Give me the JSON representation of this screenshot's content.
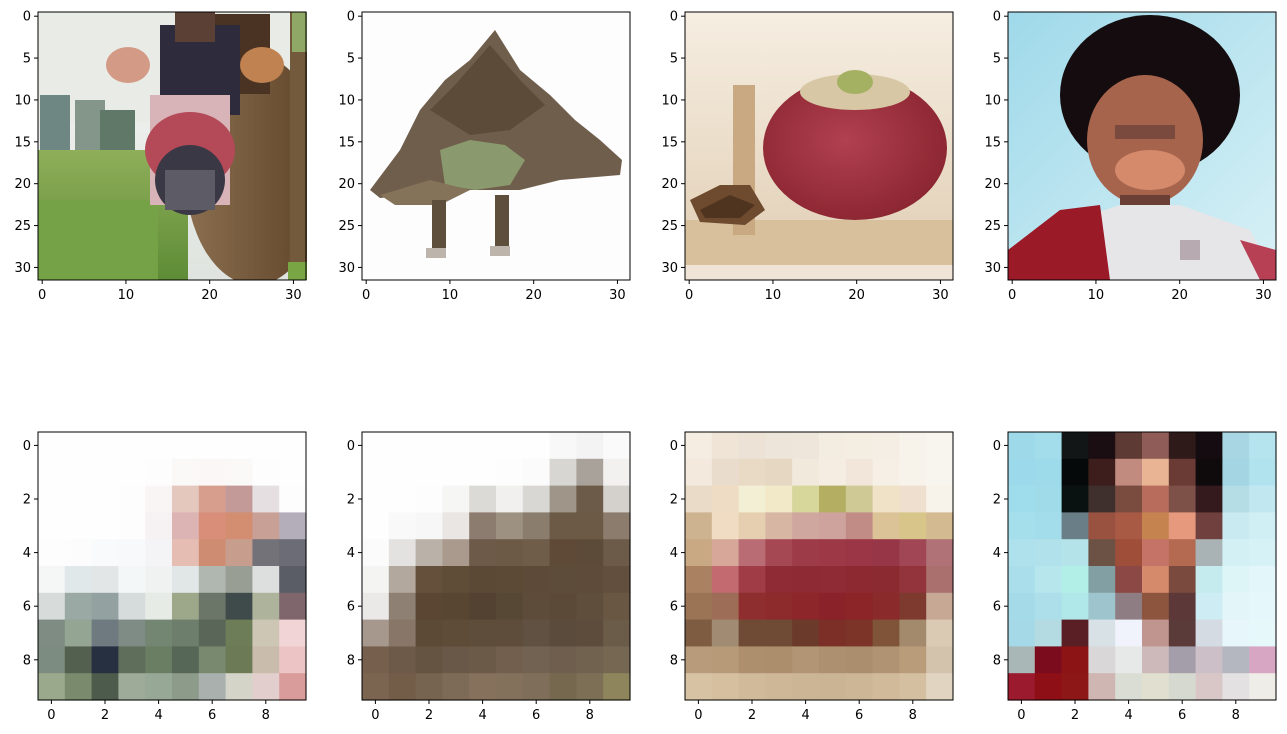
{
  "figure": {
    "top_row": {
      "panels": [
        {
          "name": "cow",
          "ticks_x": [
            "0",
            "10",
            "20",
            "30"
          ],
          "ticks_y": [
            "0",
            "5",
            "10",
            "15",
            "20",
            "25",
            "30"
          ]
        },
        {
          "name": "dinosaur",
          "ticks_x": [
            "0",
            "10",
            "20",
            "30"
          ],
          "ticks_y": [
            "0",
            "5",
            "10",
            "15",
            "20",
            "25",
            "30"
          ]
        },
        {
          "name": "apple",
          "ticks_x": [
            "0",
            "10",
            "20",
            "30"
          ],
          "ticks_y": [
            "0",
            "5",
            "10",
            "15",
            "20",
            "25",
            "30"
          ]
        },
        {
          "name": "person",
          "ticks_x": [
            "0",
            "10",
            "20",
            "30"
          ],
          "ticks_y": [
            "0",
            "5",
            "10",
            "15",
            "20",
            "25",
            "30"
          ]
        }
      ]
    },
    "bottom_row": {
      "ticks_x": [
        "0",
        "2",
        "4",
        "6",
        "8"
      ],
      "ticks_y": [
        "0",
        "2",
        "4",
        "6",
        "8"
      ],
      "grids": [
        [
          [
            "#fefefe",
            "#fefefe",
            "#fefefe",
            "#fefefe",
            "#fefefe",
            "#fefefe",
            "#fefefe",
            "#fefefe",
            "#fefefe",
            "#fefefe"
          ],
          [
            "#fefefe",
            "#fefefe",
            "#fefefe",
            "#fefefe",
            "#fdfdfd",
            "#fbf8f8",
            "#fbf7f7",
            "#fbf8f8",
            "#fdfdfd",
            "#fefefe"
          ],
          [
            "#fefefe",
            "#fefefe",
            "#fefefe",
            "#fdfdfd",
            "#f9f5f5",
            "#e4c7bd",
            "#d79e8e",
            "#c39a98",
            "#e6dfe2",
            "#fdfdfd"
          ],
          [
            "#fefefe",
            "#fefefe",
            "#fefefe",
            "#fdfdfd",
            "#f6f1f2",
            "#dcb4b4",
            "#d98e7a",
            "#d38d70",
            "#c9a096",
            "#b3aeba"
          ],
          [
            "#fdfdfd",
            "#fcfcfd",
            "#f9fafb",
            "#f8f9fa",
            "#f4f4f6",
            "#e6bdb3",
            "#ce8d72",
            "#c79e8e",
            "#747279",
            "#6c6c76"
          ],
          [
            "#f5f6f6",
            "#e1e8e9",
            "#e2e6e6",
            "#f4f7f7",
            "#f0f2f2",
            "#e1e6e6",
            "#b0b6b0",
            "#999e94",
            "#dcdfde",
            "#5a5c66"
          ],
          [
            "#d7dcdb",
            "#9ba9a4",
            "#93a2a0",
            "#d6dcdc",
            "#e7ebe6",
            "#9da78a",
            "#6c7668",
            "#3f4b4a",
            "#aeb39c",
            "#7f666d"
          ],
          [
            "#7e8c83",
            "#95a594",
            "#6f7a80",
            "#7f8c85",
            "#728672",
            "#6d7f6c",
            "#5a6758",
            "#6c7d57",
            "#cdc6b4",
            "#f0d4d6"
          ],
          [
            "#7d8c81",
            "#54604f",
            "#263040",
            "#5e6e5a",
            "#6a7e64",
            "#566657",
            "#79896f",
            "#6c7a56",
            "#c9bcad",
            "#ecc4c6"
          ],
          [
            "#9aa98c",
            "#7a8a6d",
            "#4d5b4c",
            "#9eab99",
            "#98a896",
            "#8d9b8b",
            "#a9b0ad",
            "#d5d4c8",
            "#e2cfcd",
            "#da9c9a"
          ]
        ],
        [
          [
            "#fefefe",
            "#fefefe",
            "#fefefe",
            "#fefefe",
            "#fefefe",
            "#fefefe",
            "#fefefe",
            "#f8f8f8",
            "#f3f3f3",
            "#fafafa"
          ],
          [
            "#fefefe",
            "#fefefe",
            "#fefefe",
            "#fefefe",
            "#fefefe",
            "#fdfdfd",
            "#fbfbfb",
            "#d8d6d3",
            "#a9a29a",
            "#f2f1f0"
          ],
          [
            "#fefefe",
            "#fefefe",
            "#fdfdfd",
            "#f6f6f4",
            "#dcdad7",
            "#f1f0ee",
            "#d9d7d4",
            "#9f9588",
            "#6c5b48",
            "#d4d1cd"
          ],
          [
            "#fefefe",
            "#f9f9f9",
            "#f7f7f7",
            "#e9e6e4",
            "#8c7b6f",
            "#9d9282",
            "#8b7d6d",
            "#6c5a47",
            "#6c5a47",
            "#8b7c6e"
          ],
          [
            "#fbfbfb",
            "#e3e2e0",
            "#bab2a9",
            "#a99a8d",
            "#6e5a48",
            "#6c5a46",
            "#6f5c49",
            "#5e4a36",
            "#5d4b3a",
            "#6c5b48"
          ],
          [
            "#f4f4f3",
            "#b3a89e",
            "#64503b",
            "#5f4d38",
            "#5c4935",
            "#5d4a36",
            "#5e4a38",
            "#5e4c3b",
            "#5e4b3a",
            "#624f3d"
          ],
          [
            "#ebe9e8",
            "#8e8072",
            "#5a4632",
            "#584532",
            "#534131",
            "#574735",
            "#5e4c3b",
            "#5c4a39",
            "#5f4e3c",
            "#695744"
          ],
          [
            "#a6988d",
            "#887769",
            "#5c4a37",
            "#5e4c39",
            "#5e4d3b",
            "#5e4d3b",
            "#605142",
            "#5b4b3c",
            "#5d4c3c",
            "#6b5b49"
          ],
          [
            "#765f4d",
            "#6d5a49",
            "#665442",
            "#695847",
            "#6c5a49",
            "#725f4e",
            "#726251",
            "#6f5e4e",
            "#716250",
            "#766752"
          ],
          [
            "#7c6550",
            "#735d49",
            "#766350",
            "#7e6b57",
            "#86715d",
            "#84715c",
            "#7f6f5a",
            "#76684f",
            "#7c6f56",
            "#8e855d"
          ]
        ],
        [
          [
            "#f5ede1",
            "#efe4d6",
            "#ece3d6",
            "#ede5d9",
            "#eee6db",
            "#f3ece1",
            "#f4ede2",
            "#f5eee4",
            "#f7f3ea",
            "#f8f5ee"
          ],
          [
            "#f3eadd",
            "#eadccc",
            "#e9dac6",
            "#e6d7c3",
            "#f2e9dd",
            "#f5ede2",
            "#f1e6d9",
            "#f5efe5",
            "#f7f3ea",
            "#f8f5ee"
          ],
          [
            "#eadbc9",
            "#efdcc4",
            "#f3efd5",
            "#f2e9c8",
            "#d7d79c",
            "#b4ae62",
            "#cfc996",
            "#efe2c7",
            "#efdfcf",
            "#f8f3ea"
          ],
          [
            "#ceb390",
            "#efdcc2",
            "#e5cfb0",
            "#d7b6a3",
            "#cfa79f",
            "#cea29d",
            "#c18c85",
            "#dbc297",
            "#d7c58a",
            "#d4ba90"
          ],
          [
            "#c9a884",
            "#d7a89a",
            "#b96c74",
            "#a64854",
            "#9e3b49",
            "#9d3847",
            "#9b3646",
            "#963647",
            "#a04655",
            "#b07276"
          ],
          [
            "#aa8262",
            "#c36a70",
            "#a03c45",
            "#8f2b35",
            "#8d2a33",
            "#8e2b34",
            "#8c2931",
            "#8c2a32",
            "#93343d",
            "#a9706e"
          ],
          [
            "#9a7454",
            "#9e6d57",
            "#8f2e2f",
            "#8d2a2c",
            "#8c262a",
            "#8a2329",
            "#8b2528",
            "#8a2a2b",
            "#7f3a30",
            "#c7a894"
          ],
          [
            "#7e5c42",
            "#a18b72",
            "#6f4b35",
            "#6f4b35",
            "#6b3a2b",
            "#7b2f27",
            "#7c3328",
            "#805439",
            "#a38a6c",
            "#dacab4"
          ],
          [
            "#b89b7a",
            "#b79a78",
            "#ad8f6e",
            "#ac8e6d",
            "#b19574",
            "#ad9070",
            "#aa8e6e",
            "#b09373",
            "#b99d7a",
            "#d4c3ac"
          ],
          [
            "#d7c3a4",
            "#d5bf9f",
            "#d0ba9a",
            "#cdb797",
            "#ccb595",
            "#cbb494",
            "#ccb695",
            "#d0ba9a",
            "#d4bfa1",
            "#e1d4c1"
          ]
        ],
        [
          [
            "#9ed9ea",
            "#a3dcea",
            "#121616",
            "#1a0e12",
            "#5e3a35",
            "#8f5c57",
            "#2e1a18",
            "#140c10",
            "#a8d7e3",
            "#b5e4ee"
          ],
          [
            "#9cdaeb",
            "#9ddbea",
            "#060909",
            "#3d1e1c",
            "#c18b80",
            "#e8b494",
            "#6a3a35",
            "#0f0a0c",
            "#a3d5e3",
            "#b1e3ef"
          ],
          [
            "#9fdcec",
            "#a0dbe9",
            "#0a1211",
            "#40302d",
            "#7a4b3f",
            "#b86c5c",
            "#7e5148",
            "#341a1c",
            "#b4dde6",
            "#c1e8f0"
          ],
          [
            "#a5dfec",
            "#a3dcea",
            "#6a7e88",
            "#9a5240",
            "#a85a44",
            "#c5844f",
            "#e6997d",
            "#6f403e",
            "#c9eaf1",
            "#d0eff5"
          ],
          [
            "#aee1ec",
            "#b1e1ea",
            "#b4e3ea",
            "#6c5244",
            "#9f4e3a",
            "#c57367",
            "#b36a51",
            "#a9b2b4",
            "#d3f0f5",
            "#d7f2f7"
          ],
          [
            "#aadeeb",
            "#b7e6ed",
            "#b1efe7",
            "#82a0a3",
            "#8c4844",
            "#d68a6c",
            "#7a4a3e",
            "#c5ebee",
            "#def5f8",
            "#e3f7fa"
          ],
          [
            "#a5dbe9",
            "#addfea",
            "#b0e7e8",
            "#9ec5cd",
            "#8f7d84",
            "#8e553e",
            "#5c3838",
            "#cdecf3",
            "#e3f5f8",
            "#e5f7fb"
          ],
          [
            "#a5d9e7",
            "#b3dbe1",
            "#5a1f25",
            "#d7e1e6",
            "#f0f3fc",
            "#c0958f",
            "#5b3a3a",
            "#d5dbe3",
            "#e7f6fa",
            "#e7f8fb"
          ],
          [
            "#a9b7b7",
            "#7a0c1e",
            "#8d1415",
            "#d9d7d7",
            "#e7e8e8",
            "#ceb9ba",
            "#a39ea9",
            "#cdbfc7",
            "#b4b7bf",
            "#d7a6c3"
          ],
          [
            "#9b1a2e",
            "#8f0f16",
            "#8d1717",
            "#cfb6b2",
            "#d9ddd4",
            "#e0dfd0",
            "#d6d9cf",
            "#d9c7c7",
            "#e3e1e2",
            "#eeede8"
          ]
        ]
      ]
    }
  }
}
